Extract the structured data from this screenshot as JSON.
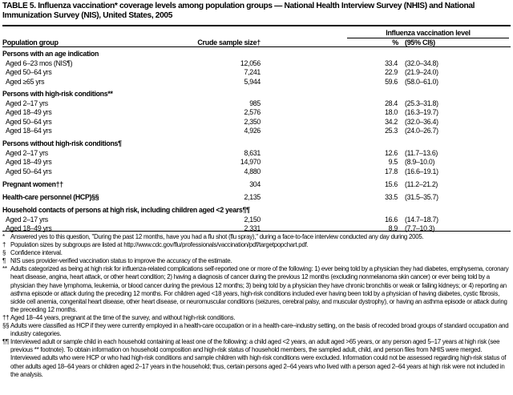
{
  "title": "TABLE 5. Influenza vaccination* coverage levels among population groups — National Health Interview Survey (NHIS) and National Immunization Survey (NIS), United States, 2005",
  "header": {
    "spanner": "Influenza vaccination level",
    "group": "Population group",
    "sample": "Crude sample size†",
    "pct": "%",
    "ci": "(95% CI§)"
  },
  "rows": [
    {
      "type": "group",
      "label": "Persons with an age indication"
    },
    {
      "label": "Aged 6–23 mos (NIS¶)",
      "n": "12,056",
      "p": "33.4",
      "ci": "(32.0–34.8)"
    },
    {
      "label": "Aged 50–64 yrs",
      "n": "7,241",
      "p": "22.9",
      "ci": "(21.9–24.0)"
    },
    {
      "label": "Aged ≥65 yrs",
      "n": "5,944",
      "p": "59.6",
      "ci": "(58.0–61.0)"
    },
    {
      "type": "group",
      "label": "Persons with high-risk conditions**"
    },
    {
      "label": "Aged 2–17 yrs",
      "n": "985",
      "p": "28.4",
      "ci": "(25.3–31.8)"
    },
    {
      "label": "Aged 18–49 yrs",
      "n": "2,576",
      "p": "18.0",
      "ci": "(16.3–19.7)"
    },
    {
      "label": "Aged 50–64 yrs",
      "n": "2,350",
      "p": "34.2",
      "ci": "(32.0–36.4)"
    },
    {
      "label": "Aged 18–64 yrs",
      "n": "4,926",
      "p": "25.3",
      "ci": "(24.0–26.7)"
    },
    {
      "type": "group",
      "label": "Persons without high-risk conditions¶"
    },
    {
      "label": "Aged 2–17 yrs",
      "n": "8,631",
      "p": "12.6",
      "ci": "(11.7–13.6)"
    },
    {
      "label": "Aged 18–49 yrs",
      "n": "14,970",
      "p": "9.5",
      "ci": "(8.9–10.0)"
    },
    {
      "label": "Aged 50–64 yrs",
      "n": "4,880",
      "p": "17.8",
      "ci": "(16.6–19.1)"
    },
    {
      "type": "group",
      "label": "Pregnant women††",
      "n": "304",
      "p": "15.6",
      "ci": "(11.2–21.2)"
    },
    {
      "type": "group",
      "label": "Health-care personnel (HCP)§§",
      "n": "2,135",
      "p": "33.5",
      "ci": "(31.5–35.7)"
    },
    {
      "type": "group",
      "label": "Household contacts of persons at high risk, including children aged <2 years¶¶"
    },
    {
      "label": "Aged 2–17 yrs",
      "n": "2,150",
      "p": "16.6",
      "ci": "(14.7–18.7)"
    },
    {
      "label": "Aged 18–49 yrs",
      "n": "2,331",
      "p": "8.9",
      "ci": "(7.7–10.3)"
    }
  ],
  "footnotes": [
    {
      "mark": "*",
      "text": "Answered yes to this question, \"During the past 12 months, have you had a flu shot (flu spray),\" during a face-to-face interview conducted any day during 2005."
    },
    {
      "mark": "†",
      "text": "Population sizes by subgroups are listed at http://www.cdc.gov/flu/professionals/vaccination/pdf/targetpopchart.pdf."
    },
    {
      "mark": "§",
      "text": "Confidence interval."
    },
    {
      "mark": "¶",
      "text": "NIS uses provider-verified vaccination status to improve the accuracy of the estimate."
    },
    {
      "mark": "**",
      "text": "Adults categorized as being at high risk for influenza-related complications self-reported one or more of the following: 1) ever being told by a physician they had diabetes, emphysema, coronary heart disease, angina, heart attack, or other heart condition; 2) having a diagnosis of cancer during the previous 12 months (excluding nonmelanoma skin cancer) or ever being told by a physician they have lymphoma, leukemia, or blood cancer during the previous 12 months; 3) being told by a physician they have chronic bronchitis or weak or failing kidneys; or 4) reporting an asthma episode or attack during the preceding 12 months. For children aged <18 years, high-risk conditions included ever having been told by a physician of having diabetes, cystic fibrosis, sickle cell anemia, congenital heart disease, other heart disease, or neuromuscular conditions (seizures, cerebral palsy, and muscular dystrophy), or having an asthma episode or attack during the preceding 12 months."
    },
    {
      "mark": "††",
      "text": "Aged 18–44 years, pregnant at the time of the survey, and without high-risk conditions."
    },
    {
      "mark": "§§",
      "text": "Adults were classified as HCP if they were currently employed in a health-care occupation or in a health-care–industry setting, on the basis of recoded broad groups of standard occupation and industry categories."
    },
    {
      "mark": "¶¶",
      "text": "Interviewed adult or sample child in each household containing at least one of the following: a child aged <2 years, an adult aged >65 years, or any person aged 5–17 years at high risk (see previous ** footnote). To obtain information on household composition and high-risk status of household members, the sampled adult, child, and person files from NHIS were merged. Interviewed adults who were HCP or who had high-risk conditions and sample children with high-risk conditions were excluded. Information could not be assessed regarding high-risk status of other adults aged 18–64 years or children aged 2–17 years in the household; thus, certain persons aged 2–64 years who lived with a person aged 2–64 years at high risk were not included in the analysis."
    }
  ]
}
